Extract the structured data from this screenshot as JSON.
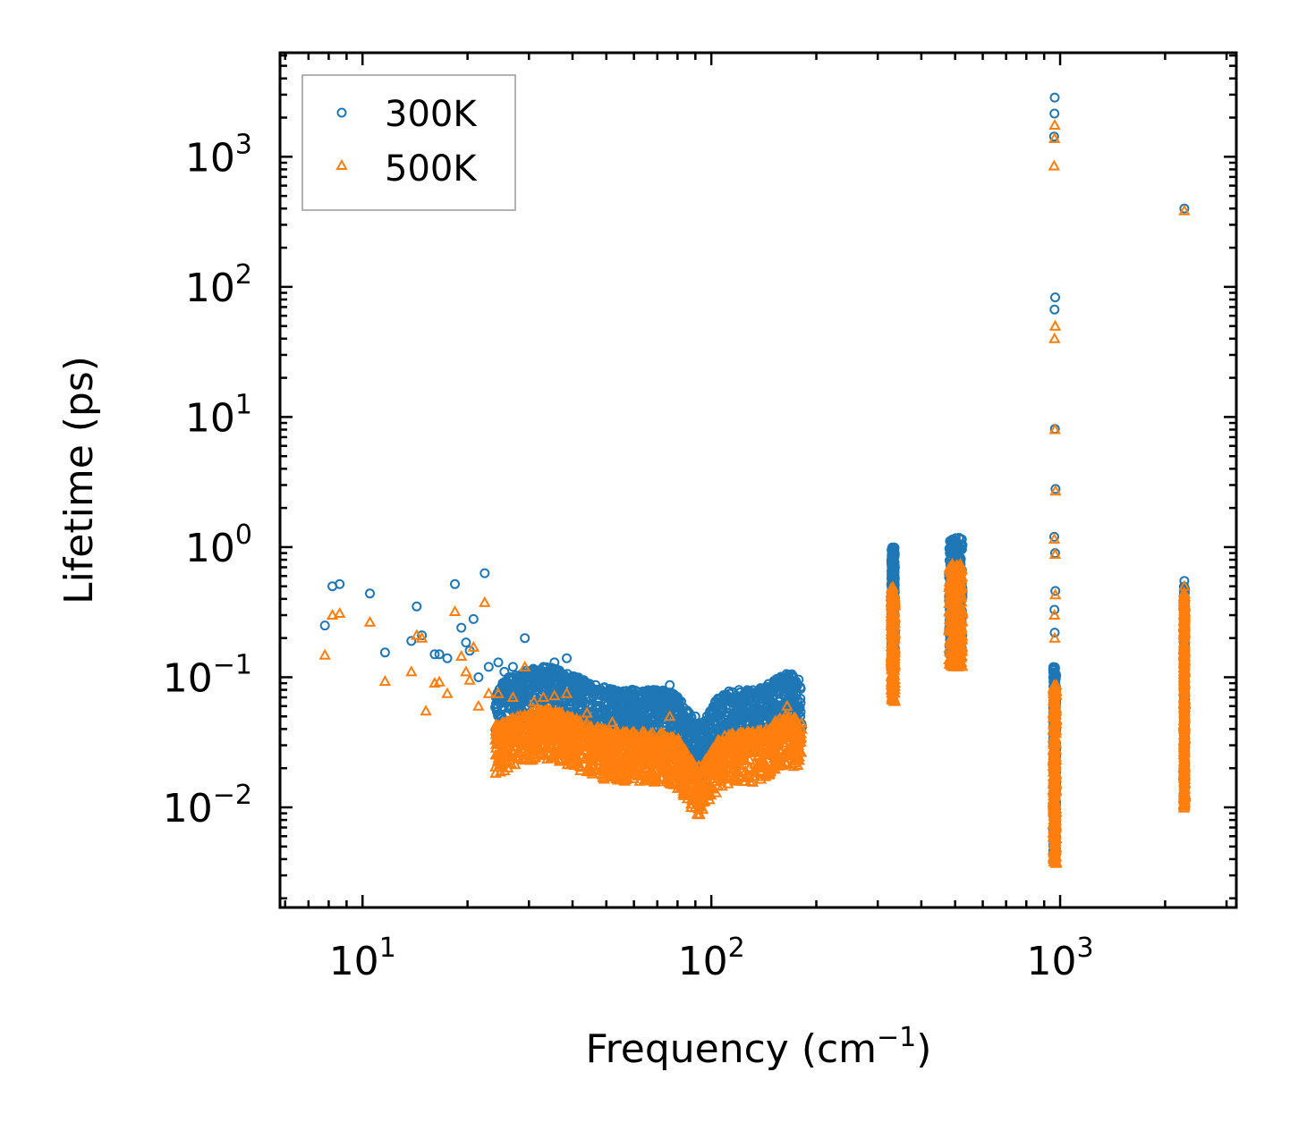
{
  "chart_data": {
    "type": "scatter",
    "title": "",
    "xlabel": "Frequency (cm",
    "xlabel_sup": "−1",
    "xlabel_close": ")",
    "ylabel": "Lifetime (ps)",
    "xscale": "log",
    "yscale": "log",
    "xlim": [
      5.8,
      3200
    ],
    "ylim": [
      0.0017,
      6300
    ],
    "x_ticks": [
      {
        "value": 10,
        "base": "10",
        "exp": "1"
      },
      {
        "value": 100,
        "base": "10",
        "exp": "2"
      },
      {
        "value": 1000,
        "base": "10",
        "exp": "3"
      }
    ],
    "y_ticks": [
      {
        "value": 0.01,
        "base": "10",
        "exp": "−2"
      },
      {
        "value": 0.1,
        "base": "10",
        "exp": "−1"
      },
      {
        "value": 1,
        "base": "10",
        "exp": "0"
      },
      {
        "value": 10,
        "base": "10",
        "exp": "1"
      },
      {
        "value": 100,
        "base": "10",
        "exp": "2"
      },
      {
        "value": 1000,
        "base": "10",
        "exp": "3"
      }
    ],
    "legend_position": "top-left",
    "series": [
      {
        "name": "300K",
        "marker": "circle",
        "color": "#1f77b4",
        "points": [
          [
            7.8,
            0.25
          ],
          [
            8.2,
            0.5
          ],
          [
            8.6,
            0.52
          ],
          [
            10.5,
            0.44
          ],
          [
            11.6,
            0.155
          ],
          [
            13.8,
            0.19
          ],
          [
            14.3,
            0.35
          ],
          [
            14.8,
            0.21
          ],
          [
            16.1,
            0.15
          ],
          [
            16.6,
            0.15
          ],
          [
            17.5,
            0.14
          ],
          [
            18.4,
            0.52
          ],
          [
            19.2,
            0.24
          ],
          [
            19.8,
            0.185
          ],
          [
            20.3,
            0.16
          ],
          [
            20.8,
            0.28
          ],
          [
            22.4,
            0.63
          ],
          [
            21.5,
            0.1
          ],
          [
            23.0,
            0.12
          ],
          [
            24.5,
            0.13
          ],
          [
            25.5,
            0.11
          ],
          [
            27.0,
            0.12
          ],
          [
            29.2,
            0.2
          ],
          [
            31.0,
            0.11
          ],
          [
            33.0,
            0.12
          ],
          [
            35.5,
            0.13
          ],
          [
            38.5,
            0.14
          ],
          [
            41.0,
            0.085
          ],
          [
            44.0,
            0.09
          ],
          [
            47.0,
            0.078
          ],
          [
            52.0,
            0.07
          ],
          [
            58.0,
            0.068
          ],
          [
            65.0,
            0.068
          ],
          [
            72.0,
            0.072
          ],
          [
            76.0,
            0.087
          ],
          [
            82.0,
            0.065
          ],
          [
            90.0,
            0.05
          ],
          [
            100.0,
            0.04
          ],
          [
            112.0,
            0.057
          ],
          [
            122.0,
            0.05
          ],
          [
            135.0,
            0.052
          ],
          [
            150.0,
            0.058
          ],
          [
            162.0,
            0.078
          ],
          [
            165.0,
            0.101
          ],
          [
            170.0,
            0.07
          ],
          [
            178.0,
            0.06
          ],
          [
            180.0,
            0.05
          ],
          [
            965.0,
            2850
          ],
          [
            963.0,
            2150
          ],
          [
            961.0,
            1430
          ],
          [
            968.0,
            83
          ],
          [
            964.0,
            67
          ],
          [
            966.0,
            8.1
          ],
          [
            970.0,
            2.8
          ],
          [
            962.0,
            1.2
          ],
          [
            967.0,
            0.9
          ],
          [
            969.0,
            0.46
          ],
          [
            963.0,
            0.33
          ],
          [
            965.0,
            0.22
          ],
          [
            2270.0,
            400
          ],
          [
            2270.0,
            0.55
          ]
        ],
        "bands": [
          {
            "x_from": 24,
            "x_to": 182,
            "y_base": 0.05,
            "band": "upper"
          },
          {
            "x_from": 328,
            "x_to": 336,
            "y_lo": 0.15,
            "y_hi": 1.0
          },
          {
            "x_from": 480,
            "x_to": 525,
            "y_lo": 0.15,
            "y_hi": 1.18
          },
          {
            "x_from": 955,
            "x_to": 975,
            "y_lo": 0.004,
            "y_hi": 0.12
          },
          {
            "x_from": 2262,
            "x_to": 2280,
            "y_lo": 0.012,
            "y_hi": 0.5
          }
        ]
      },
      {
        "name": "500K",
        "marker": "triangle",
        "color": "#ff7f0e",
        "points": [
          [
            7.8,
            0.148
          ],
          [
            8.2,
            0.3
          ],
          [
            8.6,
            0.31
          ],
          [
            10.5,
            0.265
          ],
          [
            11.6,
            0.093
          ],
          [
            13.8,
            0.11
          ],
          [
            14.3,
            0.21
          ],
          [
            14.8,
            0.2
          ],
          [
            15.2,
            0.055
          ],
          [
            16.1,
            0.09
          ],
          [
            16.6,
            0.092
          ],
          [
            17.5,
            0.075
          ],
          [
            18.4,
            0.32
          ],
          [
            19.2,
            0.145
          ],
          [
            19.8,
            0.11
          ],
          [
            20.3,
            0.095
          ],
          [
            20.8,
            0.17
          ],
          [
            22.4,
            0.375
          ],
          [
            21.5,
            0.06
          ],
          [
            23.0,
            0.075
          ],
          [
            24.5,
            0.075
          ],
          [
            27.0,
            0.07
          ],
          [
            29.2,
            0.12
          ],
          [
            31.0,
            0.065
          ],
          [
            33.0,
            0.07
          ],
          [
            35.5,
            0.072
          ],
          [
            38.5,
            0.075
          ],
          [
            44.0,
            0.053
          ],
          [
            52.0,
            0.045
          ],
          [
            76.0,
            0.05
          ],
          [
            90.0,
            0.018
          ],
          [
            93.0,
            0.0105
          ],
          [
            112.0,
            0.035
          ],
          [
            135.0,
            0.03
          ],
          [
            162.0,
            0.047
          ],
          [
            165.0,
            0.06
          ],
          [
            965.0,
            1750
          ],
          [
            963.0,
            1380
          ],
          [
            961.0,
            850
          ],
          [
            968.0,
            50
          ],
          [
            964.0,
            40
          ],
          [
            966.0,
            8.0
          ],
          [
            970.0,
            2.7
          ],
          [
            962.0,
            1.15
          ],
          [
            967.0,
            0.88
          ],
          [
            969.0,
            0.43
          ],
          [
            963.0,
            0.3
          ],
          [
            965.0,
            0.2
          ],
          [
            2270.0,
            385
          ],
          [
            2270.0,
            0.5
          ]
        ],
        "bands": [
          {
            "x_from": 24,
            "x_to": 182,
            "y_base": 0.025,
            "band": "lower"
          },
          {
            "x_from": 328,
            "x_to": 336,
            "y_lo": 0.065,
            "y_hi": 0.5
          },
          {
            "x_from": 480,
            "x_to": 525,
            "y_lo": 0.12,
            "y_hi": 0.75
          },
          {
            "x_from": 955,
            "x_to": 975,
            "y_lo": 0.0037,
            "y_hi": 0.09
          },
          {
            "x_from": 2262,
            "x_to": 2280,
            "y_lo": 0.0098,
            "y_hi": 0.45
          }
        ]
      }
    ]
  }
}
